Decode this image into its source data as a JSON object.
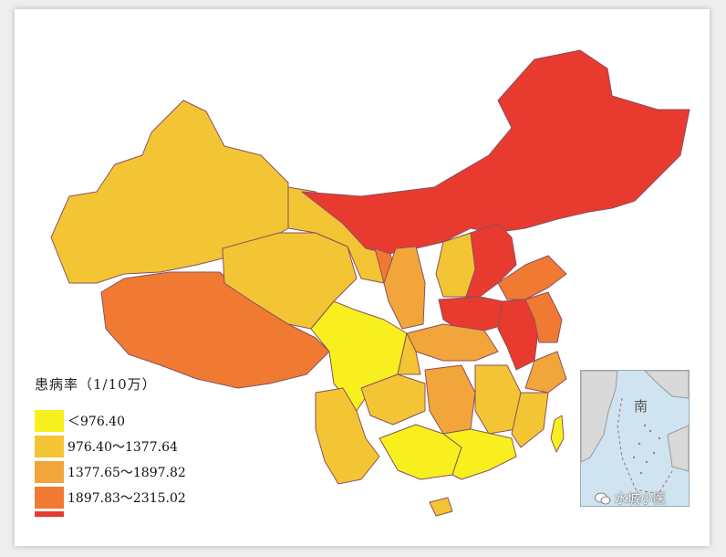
{
  "legend": {
    "title": "患病率（1/10万）",
    "items": [
      {
        "label": "＜976.40",
        "color": "#f7f01e"
      },
      {
        "label": "976.40～1377.64",
        "color": "#f3c534"
      },
      {
        "label": "1377.65～1897.82",
        "color": "#f2a53a"
      },
      {
        "label": "1897.83～2315.02",
        "color": "#f07a32"
      },
      {
        "label": "",
        "color": "#e93a30"
      }
    ]
  },
  "inset": {
    "label": "南"
  },
  "watermark": {
    "text": "水城小医",
    "icon": "wechat-icon"
  },
  "colors": {
    "red": "#e93a30",
    "orange": "#f07a32",
    "light_orange": "#f2a53a",
    "gold": "#f3c534",
    "yellow": "#f7f01e",
    "sea": "#cfe4f0",
    "border": "#7a3a55"
  }
}
